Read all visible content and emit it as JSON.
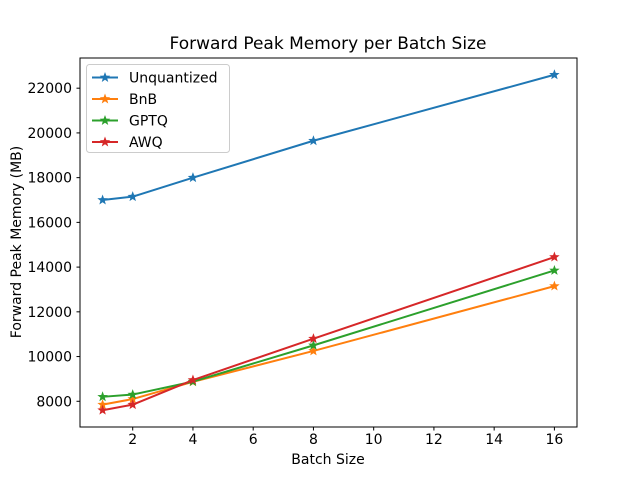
{
  "chart_data": {
    "type": "line",
    "title": "Forward Peak Memory per Batch Size",
    "xlabel": "Batch Size",
    "ylabel": "Forward Peak Memory (MB)",
    "x": [
      1,
      2,
      4,
      8,
      16
    ],
    "series": [
      {
        "name": "Unquantized",
        "color": "#1f77b4",
        "marker": "star",
        "values": [
          17000,
          17150,
          18000,
          19650,
          22600
        ]
      },
      {
        "name": "BnB",
        "color": "#ff7f0e",
        "marker": "star",
        "values": [
          7850,
          8100,
          8870,
          10250,
          13150
        ]
      },
      {
        "name": "GPTQ",
        "color": "#2ca02c",
        "marker": "star",
        "values": [
          8200,
          8300,
          8880,
          10500,
          13850
        ]
      },
      {
        "name": "AWQ",
        "color": "#d62728",
        "marker": "star",
        "values": [
          7600,
          7850,
          8950,
          10800,
          14450
        ]
      }
    ],
    "xticks": [
      2,
      4,
      6,
      8,
      10,
      12,
      14,
      16
    ],
    "yticks": [
      8000,
      10000,
      12000,
      14000,
      16000,
      18000,
      20000,
      22000
    ],
    "xlim": [
      0.25,
      16.75
    ],
    "ylim": [
      6850,
      23350
    ],
    "grid": false,
    "legend_position": "upper-left",
    "colors": {
      "background": "#ffffff",
      "spine": "#000000",
      "legend_border": "#cccccc",
      "legend_background": "#ffffff"
    }
  }
}
